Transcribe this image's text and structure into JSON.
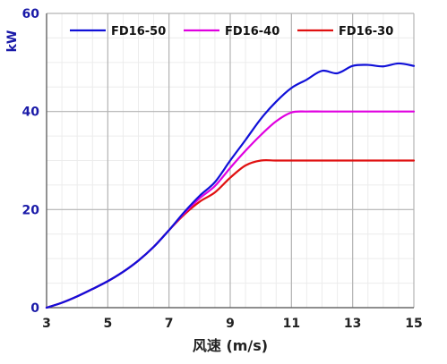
{
  "chart_data": {
    "type": "line",
    "xlabel": "风速 (m/s)",
    "ylabel": "kW",
    "xlim": [
      3,
      15
    ],
    "ylim": [
      0,
      60
    ],
    "x_ticks": [
      "3",
      "5",
      "7",
      "9",
      "11",
      "13",
      "15"
    ],
    "y_ticks": [
      "0",
      "20",
      "40",
      "60"
    ],
    "grid": true,
    "legend_position": "top",
    "series": [
      {
        "name": "FD16-50",
        "color": "#1010d8",
        "points": [
          [
            3,
            0
          ],
          [
            3.5,
            1.0
          ],
          [
            4,
            2.3
          ],
          [
            4.5,
            3.8
          ],
          [
            5,
            5.4
          ],
          [
            5.5,
            7.3
          ],
          [
            6,
            9.6
          ],
          [
            6.5,
            12.4
          ],
          [
            7,
            15.8
          ],
          [
            7.5,
            19.5
          ],
          [
            8,
            22.8
          ],
          [
            8.5,
            25.6
          ],
          [
            9,
            30.0
          ],
          [
            9.5,
            34.2
          ],
          [
            10,
            38.5
          ],
          [
            10.5,
            42.0
          ],
          [
            11,
            44.8
          ],
          [
            11.5,
            46.5
          ],
          [
            12,
            48.3
          ],
          [
            12.5,
            47.8
          ],
          [
            13,
            49.3
          ],
          [
            13.5,
            49.5
          ],
          [
            14,
            49.2
          ],
          [
            14.5,
            49.8
          ],
          [
            15,
            49.3
          ]
        ]
      },
      {
        "name": "FD16-40",
        "color": "#e000e0",
        "points": [
          [
            3,
            0
          ],
          [
            3.5,
            1.0
          ],
          [
            4,
            2.3
          ],
          [
            4.5,
            3.8
          ],
          [
            5,
            5.4
          ],
          [
            5.5,
            7.3
          ],
          [
            6,
            9.6
          ],
          [
            6.5,
            12.4
          ],
          [
            7,
            15.8
          ],
          [
            7.5,
            19.3
          ],
          [
            8,
            22.3
          ],
          [
            8.5,
            24.8
          ],
          [
            9,
            28.5
          ],
          [
            9.5,
            32.0
          ],
          [
            10,
            35.2
          ],
          [
            10.5,
            38.0
          ],
          [
            11,
            39.8
          ],
          [
            11.5,
            40.0
          ],
          [
            12,
            40.0
          ],
          [
            12.5,
            40.0
          ],
          [
            13,
            40.0
          ],
          [
            13.5,
            40.0
          ],
          [
            14,
            40.0
          ],
          [
            14.5,
            40.0
          ],
          [
            15,
            40.0
          ]
        ]
      },
      {
        "name": "FD16-30",
        "color": "#e01010",
        "points": [
          [
            3,
            0
          ],
          [
            3.5,
            1.0
          ],
          [
            4,
            2.3
          ],
          [
            4.5,
            3.8
          ],
          [
            5,
            5.4
          ],
          [
            5.5,
            7.3
          ],
          [
            6,
            9.6
          ],
          [
            6.5,
            12.4
          ],
          [
            7,
            15.8
          ],
          [
            7.5,
            19.0
          ],
          [
            8,
            21.6
          ],
          [
            8.5,
            23.5
          ],
          [
            9,
            26.5
          ],
          [
            9.5,
            29.0
          ],
          [
            10,
            30.0
          ],
          [
            10.5,
            30.0
          ],
          [
            11,
            30.0
          ],
          [
            11.5,
            30.0
          ],
          [
            12,
            30.0
          ],
          [
            12.5,
            30.0
          ],
          [
            13,
            30.0
          ],
          [
            13.5,
            30.0
          ],
          [
            14,
            30.0
          ],
          [
            14.5,
            30.0
          ],
          [
            15,
            30.0
          ]
        ]
      }
    ]
  }
}
